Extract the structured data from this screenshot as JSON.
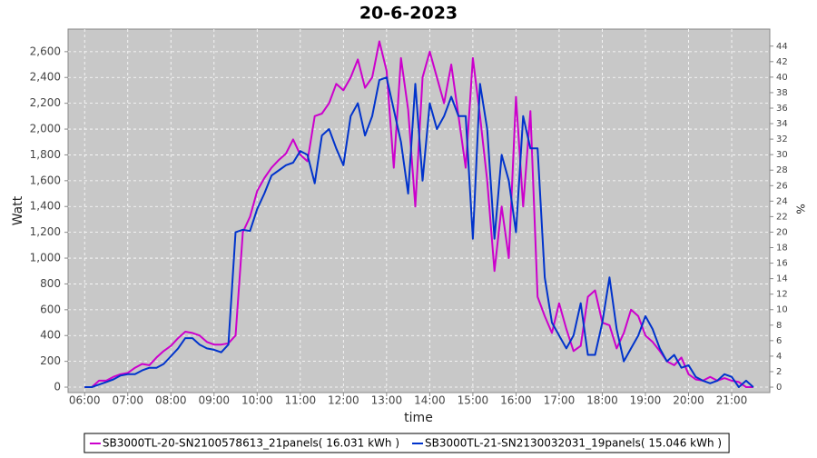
{
  "chart_data": {
    "type": "line",
    "title": "20-6-2023",
    "x_label": "time",
    "y_label": "Watt",
    "y2_label": "%",
    "x": [
      "06:00",
      "06:10",
      "06:20",
      "06:30",
      "06:40",
      "06:50",
      "07:00",
      "07:10",
      "07:20",
      "07:30",
      "07:40",
      "07:50",
      "08:00",
      "08:10",
      "08:20",
      "08:30",
      "08:40",
      "08:50",
      "09:00",
      "09:10",
      "09:20",
      "09:30",
      "09:40",
      "09:50",
      "10:00",
      "10:10",
      "10:20",
      "10:30",
      "10:40",
      "10:50",
      "11:00",
      "11:10",
      "11:20",
      "11:30",
      "11:40",
      "11:50",
      "12:00",
      "12:10",
      "12:20",
      "12:30",
      "12:40",
      "12:50",
      "13:00",
      "13:10",
      "13:20",
      "13:30",
      "13:40",
      "13:50",
      "14:00",
      "14:10",
      "14:20",
      "14:30",
      "14:40",
      "14:50",
      "15:00",
      "15:10",
      "15:20",
      "15:30",
      "15:40",
      "15:50",
      "16:00",
      "16:10",
      "16:20",
      "16:30",
      "16:40",
      "16:50",
      "17:00",
      "17:10",
      "17:20",
      "17:30",
      "17:40",
      "17:50",
      "18:00",
      "18:10",
      "18:20",
      "18:30",
      "18:40",
      "18:50",
      "19:00",
      "19:10",
      "19:20",
      "19:30",
      "19:40",
      "19:50",
      "20:00",
      "20:10",
      "20:20",
      "20:30",
      "20:40",
      "20:50",
      "21:00",
      "21:10",
      "21:20",
      "21:30"
    ],
    "series": [
      {
        "name": "SB3000TL-20-SN2100578613_21panels( 16.031 kWh )",
        "color": "#cc00cc",
        "values": [
          0,
          0,
          50,
          50,
          80,
          100,
          110,
          150,
          180,
          170,
          230,
          280,
          320,
          380,
          430,
          420,
          400,
          350,
          330,
          330,
          340,
          400,
          1200,
          1320,
          1520,
          1620,
          1700,
          1760,
          1810,
          1920,
          1800,
          1750,
          2100,
          2120,
          2200,
          2350,
          2300,
          2400,
          2540,
          2320,
          2400,
          2680,
          2450,
          1700,
          2550,
          2150,
          1400,
          2400,
          2600,
          2400,
          2200,
          2500,
          2100,
          1700,
          2550,
          2100,
          1600,
          900,
          1400,
          1000,
          2250,
          1400,
          2140,
          700,
          550,
          420,
          650,
          450,
          280,
          320,
          700,
          750,
          500,
          480,
          300,
          420,
          600,
          550,
          400,
          350,
          280,
          200,
          170,
          230,
          100,
          60,
          50,
          80,
          50,
          70,
          50,
          40,
          0,
          0
        ]
      },
      {
        "name": "SB3000TL-21-SN2130032031_19panels( 15.046 kWh )",
        "color": "#0033cc",
        "values": [
          0,
          0,
          20,
          40,
          60,
          90,
          100,
          100,
          130,
          150,
          150,
          180,
          240,
          300,
          380,
          380,
          330,
          300,
          290,
          270,
          330,
          1200,
          1220,
          1210,
          1380,
          1500,
          1640,
          1680,
          1720,
          1740,
          1830,
          1800,
          1580,
          1950,
          2000,
          1850,
          1720,
          2100,
          2200,
          1950,
          2100,
          2380,
          2400,
          2150,
          1900,
          1500,
          2350,
          1600,
          2200,
          2000,
          2100,
          2250,
          2100,
          2100,
          1150,
          2350,
          2000,
          1150,
          1800,
          1600,
          1200,
          2100,
          1850,
          1850,
          850,
          500,
          400,
          300,
          400,
          650,
          250,
          250,
          500,
          850,
          450,
          200,
          300,
          400,
          550,
          450,
          300,
          200,
          250,
          150,
          170,
          80,
          50,
          30,
          50,
          100,
          80,
          0,
          50,
          0
        ]
      }
    ],
    "xlim": [
      "05:37",
      "21:53"
    ],
    "xticks": [
      "06:00",
      "07:00",
      "08:00",
      "09:00",
      "10:00",
      "11:00",
      "12:00",
      "13:00",
      "14:00",
      "15:00",
      "16:00",
      "17:00",
      "18:00",
      "19:00",
      "20:00",
      "21:00"
    ],
    "ylim": [
      -42,
      2775
    ],
    "yticks": [
      0,
      200,
      400,
      600,
      800,
      {
        "value": 1000,
        "label": "1,000"
      },
      {
        "value": 1200,
        "label": "1,200"
      },
      {
        "value": 1400,
        "label": "1,400"
      },
      {
        "value": 1600,
        "label": "1,600"
      },
      {
        "value": 1800,
        "label": "1,800"
      },
      {
        "value": 2000,
        "label": "2,000"
      },
      {
        "value": 2200,
        "label": "2,200"
      },
      {
        "value": 2400,
        "label": "2,400"
      },
      {
        "value": 2600,
        "label": "2,600"
      }
    ],
    "y2lim": [
      -0.7,
      46.2
    ],
    "y2ticks": [
      0,
      2,
      4,
      6,
      8,
      10,
      12,
      14,
      16,
      18,
      20,
      22,
      24,
      26,
      28,
      30,
      32,
      34,
      36,
      38,
      40,
      42,
      44
    ],
    "grid": true,
    "legend": "bottom",
    "background": "#c8c8c8"
  }
}
